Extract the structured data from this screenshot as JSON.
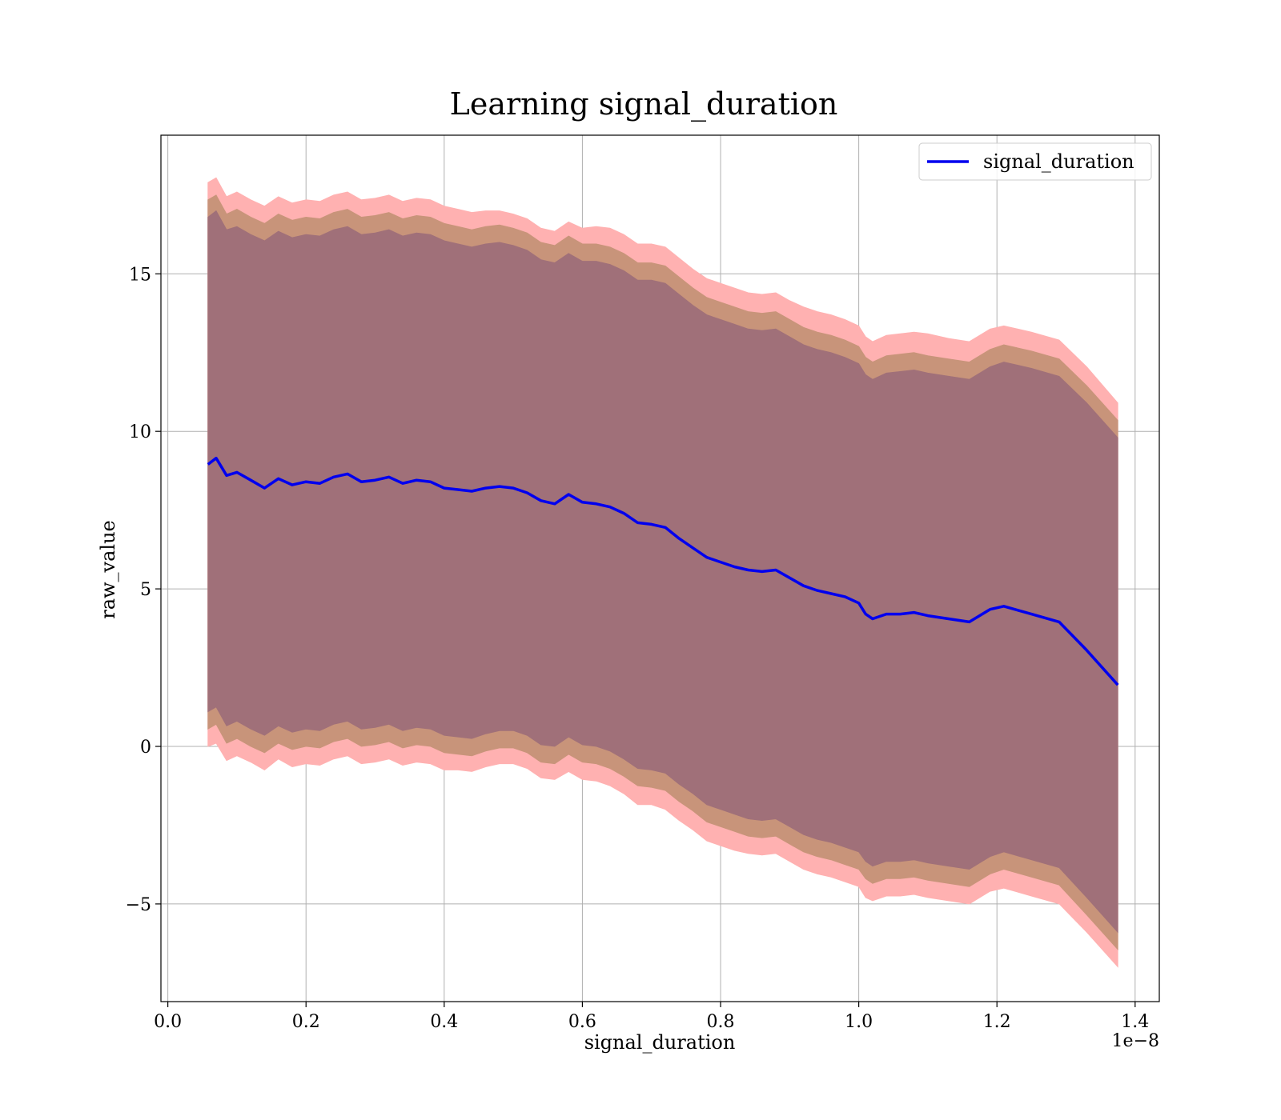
{
  "chart_data": {
    "type": "area",
    "title": "Learning signal_duration",
    "xlabel": "signal_duration",
    "ylabel": "raw_value",
    "x_offset_label": "1e−8",
    "xlim": [
      -0.01,
      1.435
    ],
    "ylim": [
      -8.1,
      19.4
    ],
    "x_ticks": [
      0.0,
      0.2,
      0.4,
      0.6,
      0.8,
      1.0,
      1.2,
      1.4
    ],
    "x_tick_labels": [
      "0.0",
      "0.2",
      "0.4",
      "0.6",
      "0.8",
      "1.0",
      "1.2",
      "1.4"
    ],
    "y_ticks": [
      -5,
      0,
      5,
      10,
      15
    ],
    "y_tick_labels": [
      "−5",
      "0",
      "5",
      "10",
      "15"
    ],
    "grid": true,
    "legend": {
      "placement": "top-right",
      "entries": [
        "signal_duration"
      ]
    },
    "colors": {
      "line": "#0000ee",
      "outer_band": "#ffb1b1",
      "middle_band": "#c8947a",
      "inner_band": "#a07079",
      "grid": "#b0b0b0"
    },
    "x": [
      0.058,
      0.07,
      0.085,
      0.1,
      0.12,
      0.14,
      0.16,
      0.18,
      0.2,
      0.22,
      0.24,
      0.26,
      0.28,
      0.3,
      0.32,
      0.34,
      0.36,
      0.38,
      0.4,
      0.42,
      0.44,
      0.46,
      0.48,
      0.5,
      0.52,
      0.54,
      0.56,
      0.58,
      0.6,
      0.62,
      0.64,
      0.66,
      0.68,
      0.7,
      0.72,
      0.74,
      0.76,
      0.78,
      0.8,
      0.82,
      0.84,
      0.86,
      0.88,
      0.9,
      0.92,
      0.94,
      0.96,
      0.98,
      1.0,
      1.01,
      1.02,
      1.04,
      1.06,
      1.08,
      1.1,
      1.13,
      1.16,
      1.19,
      1.21,
      1.25,
      1.29,
      1.33,
      1.375
    ],
    "series": [
      {
        "name": "signal_duration",
        "values": [
          8.95,
          9.15,
          8.6,
          8.7,
          8.45,
          8.2,
          8.5,
          8.3,
          8.4,
          8.35,
          8.55,
          8.65,
          8.4,
          8.45,
          8.55,
          8.35,
          8.45,
          8.4,
          8.2,
          8.15,
          8.1,
          8.2,
          8.25,
          8.2,
          8.05,
          7.8,
          7.7,
          8.0,
          7.75,
          7.7,
          7.6,
          7.4,
          7.1,
          7.05,
          6.95,
          6.6,
          6.3,
          6.0,
          5.85,
          5.7,
          5.6,
          5.55,
          5.6,
          5.35,
          5.1,
          4.95,
          4.85,
          4.75,
          4.55,
          4.2,
          4.05,
          4.2,
          4.2,
          4.25,
          4.15,
          4.05,
          3.95,
          4.35,
          4.45,
          4.2,
          3.95,
          3.05,
          1.95
        ]
      }
    ],
    "bands": [
      {
        "upper": [
          17.9,
          18.05,
          17.45,
          17.6,
          17.35,
          17.15,
          17.45,
          17.25,
          17.35,
          17.3,
          17.5,
          17.6,
          17.35,
          17.4,
          17.5,
          17.3,
          17.4,
          17.35,
          17.15,
          17.05,
          16.95,
          17.0,
          17.0,
          16.9,
          16.75,
          16.45,
          16.35,
          16.65,
          16.45,
          16.5,
          16.45,
          16.25,
          15.95,
          15.95,
          15.85,
          15.5,
          15.15,
          14.85,
          14.7,
          14.55,
          14.4,
          14.35,
          14.4,
          14.15,
          13.95,
          13.8,
          13.7,
          13.55,
          13.35,
          13.0,
          12.85,
          13.05,
          13.1,
          13.15,
          13.1,
          12.95,
          12.85,
          13.25,
          13.35,
          13.15,
          12.9,
          12.05,
          10.9
        ],
        "lower": [
          0.0,
          0.1,
          -0.45,
          -0.3,
          -0.5,
          -0.75,
          -0.4,
          -0.65,
          -0.55,
          -0.6,
          -0.4,
          -0.3,
          -0.55,
          -0.5,
          -0.4,
          -0.6,
          -0.5,
          -0.55,
          -0.75,
          -0.75,
          -0.8,
          -0.65,
          -0.55,
          -0.55,
          -0.7,
          -1.0,
          -1.05,
          -0.8,
          -1.05,
          -1.1,
          -1.25,
          -1.5,
          -1.85,
          -1.85,
          -2.0,
          -2.35,
          -2.65,
          -3.0,
          -3.15,
          -3.3,
          -3.4,
          -3.45,
          -3.4,
          -3.65,
          -3.9,
          -4.05,
          -4.15,
          -4.3,
          -4.45,
          -4.8,
          -4.9,
          -4.75,
          -4.75,
          -4.7,
          -4.8,
          -4.9,
          -5.0,
          -4.6,
          -4.5,
          -4.75,
          -5.0,
          -5.9,
          -7.0
        ]
      },
      {
        "upper": [
          17.35,
          17.5,
          16.9,
          17.05,
          16.8,
          16.6,
          16.9,
          16.7,
          16.8,
          16.75,
          16.95,
          17.05,
          16.8,
          16.85,
          16.95,
          16.75,
          16.85,
          16.8,
          16.6,
          16.5,
          16.4,
          16.5,
          16.55,
          16.45,
          16.3,
          16.0,
          15.9,
          16.2,
          15.95,
          15.95,
          15.85,
          15.65,
          15.35,
          15.35,
          15.25,
          14.9,
          14.55,
          14.25,
          14.1,
          13.95,
          13.8,
          13.75,
          13.8,
          13.55,
          13.3,
          13.15,
          13.05,
          12.9,
          12.7,
          12.35,
          12.2,
          12.4,
          12.45,
          12.5,
          12.4,
          12.3,
          12.2,
          12.6,
          12.75,
          12.55,
          12.3,
          11.45,
          10.35
        ],
        "lower": [
          0.55,
          0.7,
          0.1,
          0.25,
          0.0,
          -0.2,
          0.1,
          -0.1,
          0.0,
          -0.05,
          0.15,
          0.25,
          0.0,
          0.05,
          0.15,
          -0.05,
          0.05,
          0.0,
          -0.2,
          -0.25,
          -0.3,
          -0.15,
          -0.05,
          -0.05,
          -0.2,
          -0.5,
          -0.55,
          -0.25,
          -0.5,
          -0.55,
          -0.7,
          -0.95,
          -1.25,
          -1.3,
          -1.4,
          -1.75,
          -2.05,
          -2.4,
          -2.55,
          -2.7,
          -2.85,
          -2.9,
          -2.85,
          -3.1,
          -3.35,
          -3.5,
          -3.6,
          -3.75,
          -3.9,
          -4.2,
          -4.35,
          -4.2,
          -4.2,
          -4.15,
          -4.25,
          -4.35,
          -4.45,
          -4.05,
          -3.9,
          -4.15,
          -4.4,
          -5.35,
          -6.45
        ]
      },
      {
        "upper": [
          16.8,
          17.0,
          16.4,
          16.5,
          16.25,
          16.05,
          16.35,
          16.15,
          16.25,
          16.2,
          16.4,
          16.5,
          16.25,
          16.3,
          16.4,
          16.2,
          16.3,
          16.25,
          16.05,
          15.95,
          15.85,
          15.95,
          16.0,
          15.9,
          15.75,
          15.45,
          15.35,
          15.65,
          15.4,
          15.4,
          15.3,
          15.1,
          14.8,
          14.8,
          14.7,
          14.35,
          14.0,
          13.7,
          13.55,
          13.4,
          13.25,
          13.2,
          13.25,
          13.0,
          12.75,
          12.6,
          12.5,
          12.35,
          12.15,
          11.8,
          11.65,
          11.85,
          11.9,
          11.95,
          11.85,
          11.75,
          11.65,
          12.05,
          12.2,
          12.0,
          11.75,
          10.9,
          9.8
        ],
        "lower": [
          1.1,
          1.25,
          0.65,
          0.8,
          0.55,
          0.35,
          0.65,
          0.45,
          0.55,
          0.5,
          0.7,
          0.8,
          0.55,
          0.6,
          0.7,
          0.5,
          0.6,
          0.55,
          0.35,
          0.3,
          0.25,
          0.4,
          0.5,
          0.5,
          0.35,
          0.05,
          0.0,
          0.3,
          0.05,
          0.0,
          -0.15,
          -0.4,
          -0.7,
          -0.75,
          -0.85,
          -1.2,
          -1.5,
          -1.85,
          -2.0,
          -2.15,
          -2.3,
          -2.35,
          -2.3,
          -2.55,
          -2.8,
          -2.95,
          -3.05,
          -3.2,
          -3.35,
          -3.65,
          -3.8,
          -3.65,
          -3.65,
          -3.6,
          -3.7,
          -3.8,
          -3.9,
          -3.5,
          -3.35,
          -3.6,
          -3.85,
          -4.8,
          -5.9
        ]
      }
    ]
  }
}
